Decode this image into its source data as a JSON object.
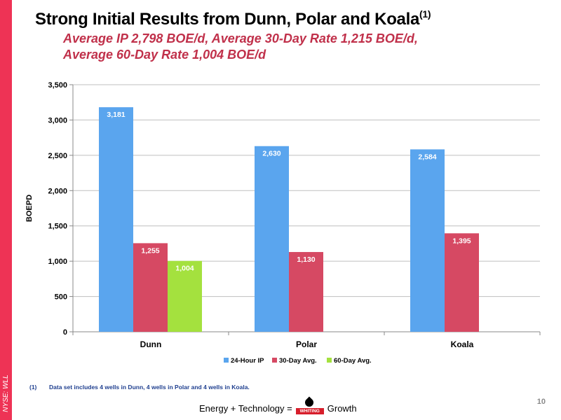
{
  "slide": {
    "side_label": "NYSE: WLL",
    "title": "Strong Initial Results from Dunn, Polar and Koala",
    "title_sup": "(1)",
    "subtitle_line1": "Average IP 2,798 BOE/d, Average 30-Day Rate 1,215 BOE/d,",
    "subtitle_line2": "Average 60-Day Rate 1,004 BOE/d",
    "footnote_num": "(1)",
    "footnote_text": "Data set includes 4  wells in Dunn, 4 wells in Polar and 4 wells in Koala.",
    "tagline_left": "Energy + Technology =",
    "logo_text": "WHITING",
    "tagline_right": "Growth",
    "page_number": "10"
  },
  "chart_data": {
    "type": "bar",
    "categories": [
      "Dunn",
      "Polar",
      "Koala"
    ],
    "series": [
      {
        "name": "24-Hour IP",
        "color": "#5aa5ee",
        "values": [
          3181,
          2630,
          2584
        ],
        "labels": [
          "3,181",
          "2,630",
          "2,584"
        ]
      },
      {
        "name": "30-Day Avg.",
        "color": "#d64963",
        "values": [
          1255,
          1130,
          1395
        ],
        "labels": [
          "1,255",
          "1,130",
          "1,395"
        ]
      },
      {
        "name": "60-Day Avg.",
        "color": "#a4e13e",
        "values": [
          1004,
          null,
          null
        ],
        "labels": [
          "1,004",
          null,
          null
        ]
      }
    ],
    "ylabel": "BOEPD",
    "ylim": [
      0,
      3500
    ],
    "yticks": [
      0,
      500,
      1000,
      1500,
      2000,
      2500,
      3000,
      3500
    ],
    "ytick_labels": [
      "0",
      "500",
      "1,000",
      "1,500",
      "2,000",
      "2,500",
      "3,000",
      "3,500"
    ],
    "grid": true,
    "legend": "bottom-center"
  }
}
